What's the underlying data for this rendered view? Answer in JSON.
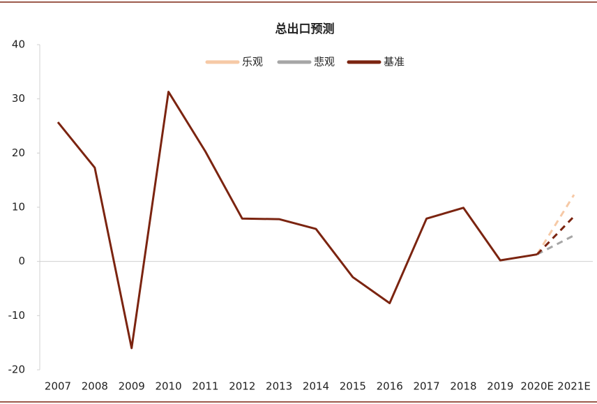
{
  "chart_data": {
    "type": "line",
    "title": "总出口预测",
    "categories": [
      "2007",
      "2008",
      "2009",
      "2010",
      "2011",
      "2012",
      "2013",
      "2014",
      "2015",
      "2016",
      "2017",
      "2018",
      "2019",
      "2020E",
      "2021E"
    ],
    "series": [
      {
        "name": "乐观",
        "color": "#f6c9a6",
        "values": [
          null,
          null,
          null,
          null,
          null,
          null,
          null,
          null,
          null,
          null,
          null,
          null,
          null,
          1.3,
          12.3
        ]
      },
      {
        "name": "悲观",
        "color": "#a6a6a6",
        "values": [
          null,
          null,
          null,
          null,
          null,
          null,
          null,
          null,
          null,
          null,
          null,
          null,
          null,
          1.3,
          4.8
        ]
      },
      {
        "name": "基准",
        "color": "#7b2410",
        "values": [
          25.7,
          17.3,
          -16.0,
          31.3,
          20.3,
          7.9,
          7.8,
          6.0,
          -2.9,
          -7.7,
          7.9,
          9.9,
          0.2,
          1.3,
          8.3
        ]
      }
    ],
    "forecast_start": "2020E",
    "ylim": [
      -20,
      40
    ],
    "yticks": [
      -20,
      -10,
      0,
      10,
      20,
      30,
      40
    ],
    "negative_tick_color": "#e0002a",
    "legend": "top"
  }
}
